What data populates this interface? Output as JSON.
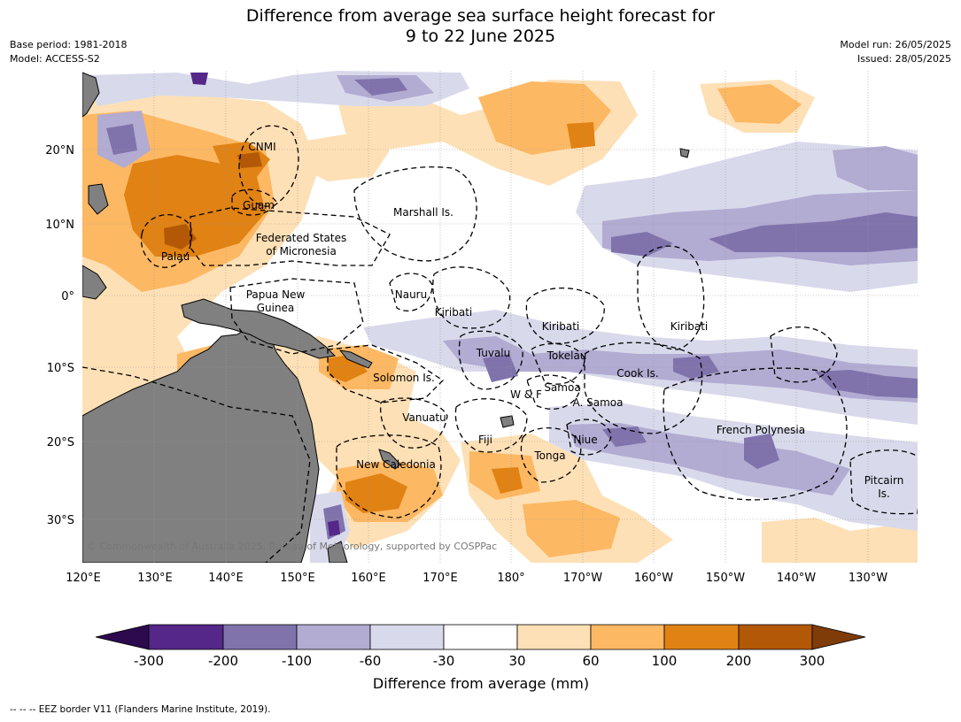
{
  "header": {
    "title_line1": "Difference from average sea surface height forecast for",
    "title_line2": "9 to 22 June 2025",
    "base_period": "Base period: 1981-2018",
    "model": "Model: ACCESS-S2",
    "model_run": "Model run: 26/05/2025",
    "issued": "Issued: 28/05/2025"
  },
  "map": {
    "region": "Western and Central Pacific",
    "lon_ticks": [
      "120°E",
      "130°E",
      "140°E",
      "150°E",
      "160°E",
      "170°E",
      "180°",
      "170°W",
      "160°W",
      "150°W",
      "140°W",
      "130°W"
    ],
    "lat_ticks": [
      "20°N",
      "10°N",
      "0°",
      "10°S",
      "20°S",
      "30°S"
    ],
    "labels": {
      "cnmi": "CNMI",
      "guam": "Guam",
      "marshall": "Marshall Is.",
      "fsm_1": "Federated States",
      "fsm_2": "of Micronesia",
      "palau": "Palau",
      "png_1": "Papua New",
      "png_2": "Guinea",
      "nauru": "Nauru",
      "kiribati_w": "Kiribati",
      "kiribati_c": "Kiribati",
      "kiribati_e": "Kiribati",
      "tuvalu": "Tuvalu",
      "tokelau": "Tokelau",
      "cook": "Cook Is.",
      "solomon": "Solomon Is.",
      "wf": "W & F",
      "samoa": "Samoa",
      "asamoa": "A. Samoa",
      "vanuatu": "Vanuatu",
      "fiji": "Fiji",
      "niue": "Niue",
      "tonga": "Tonga",
      "french_polynesia": "French Polynesia",
      "new_caledonia": "New Caledonia",
      "pitcairn_1": "Pitcairn",
      "pitcairn_2": "Is."
    },
    "credit": "© Commonwealth of Australia 2025, Bureau of Meteorology, supported by COSPPac",
    "land_color": "#808080",
    "ocean_color": "#ffffff"
  },
  "colorbar": {
    "title": "Difference from average (mm)",
    "ticks": [
      "-300",
      "-200",
      "-100",
      "-60",
      "-30",
      "30",
      "60",
      "100",
      "200",
      "300"
    ],
    "colors": {
      "below_min": "#2d0a4e",
      "c1": "#542788",
      "c2": "#8073ac",
      "c3": "#b2abd2",
      "c4": "#d8daeb",
      "c5": "#ffffff",
      "c6": "#fee0b6",
      "c7": "#fdb863",
      "c8": "#e08214",
      "c9": "#b35806",
      "above_max": "#7f3b08"
    }
  },
  "footer": {
    "legend_text": "--  --  -- EEZ border V11 (Flanders Marine Institute, 2019)."
  }
}
